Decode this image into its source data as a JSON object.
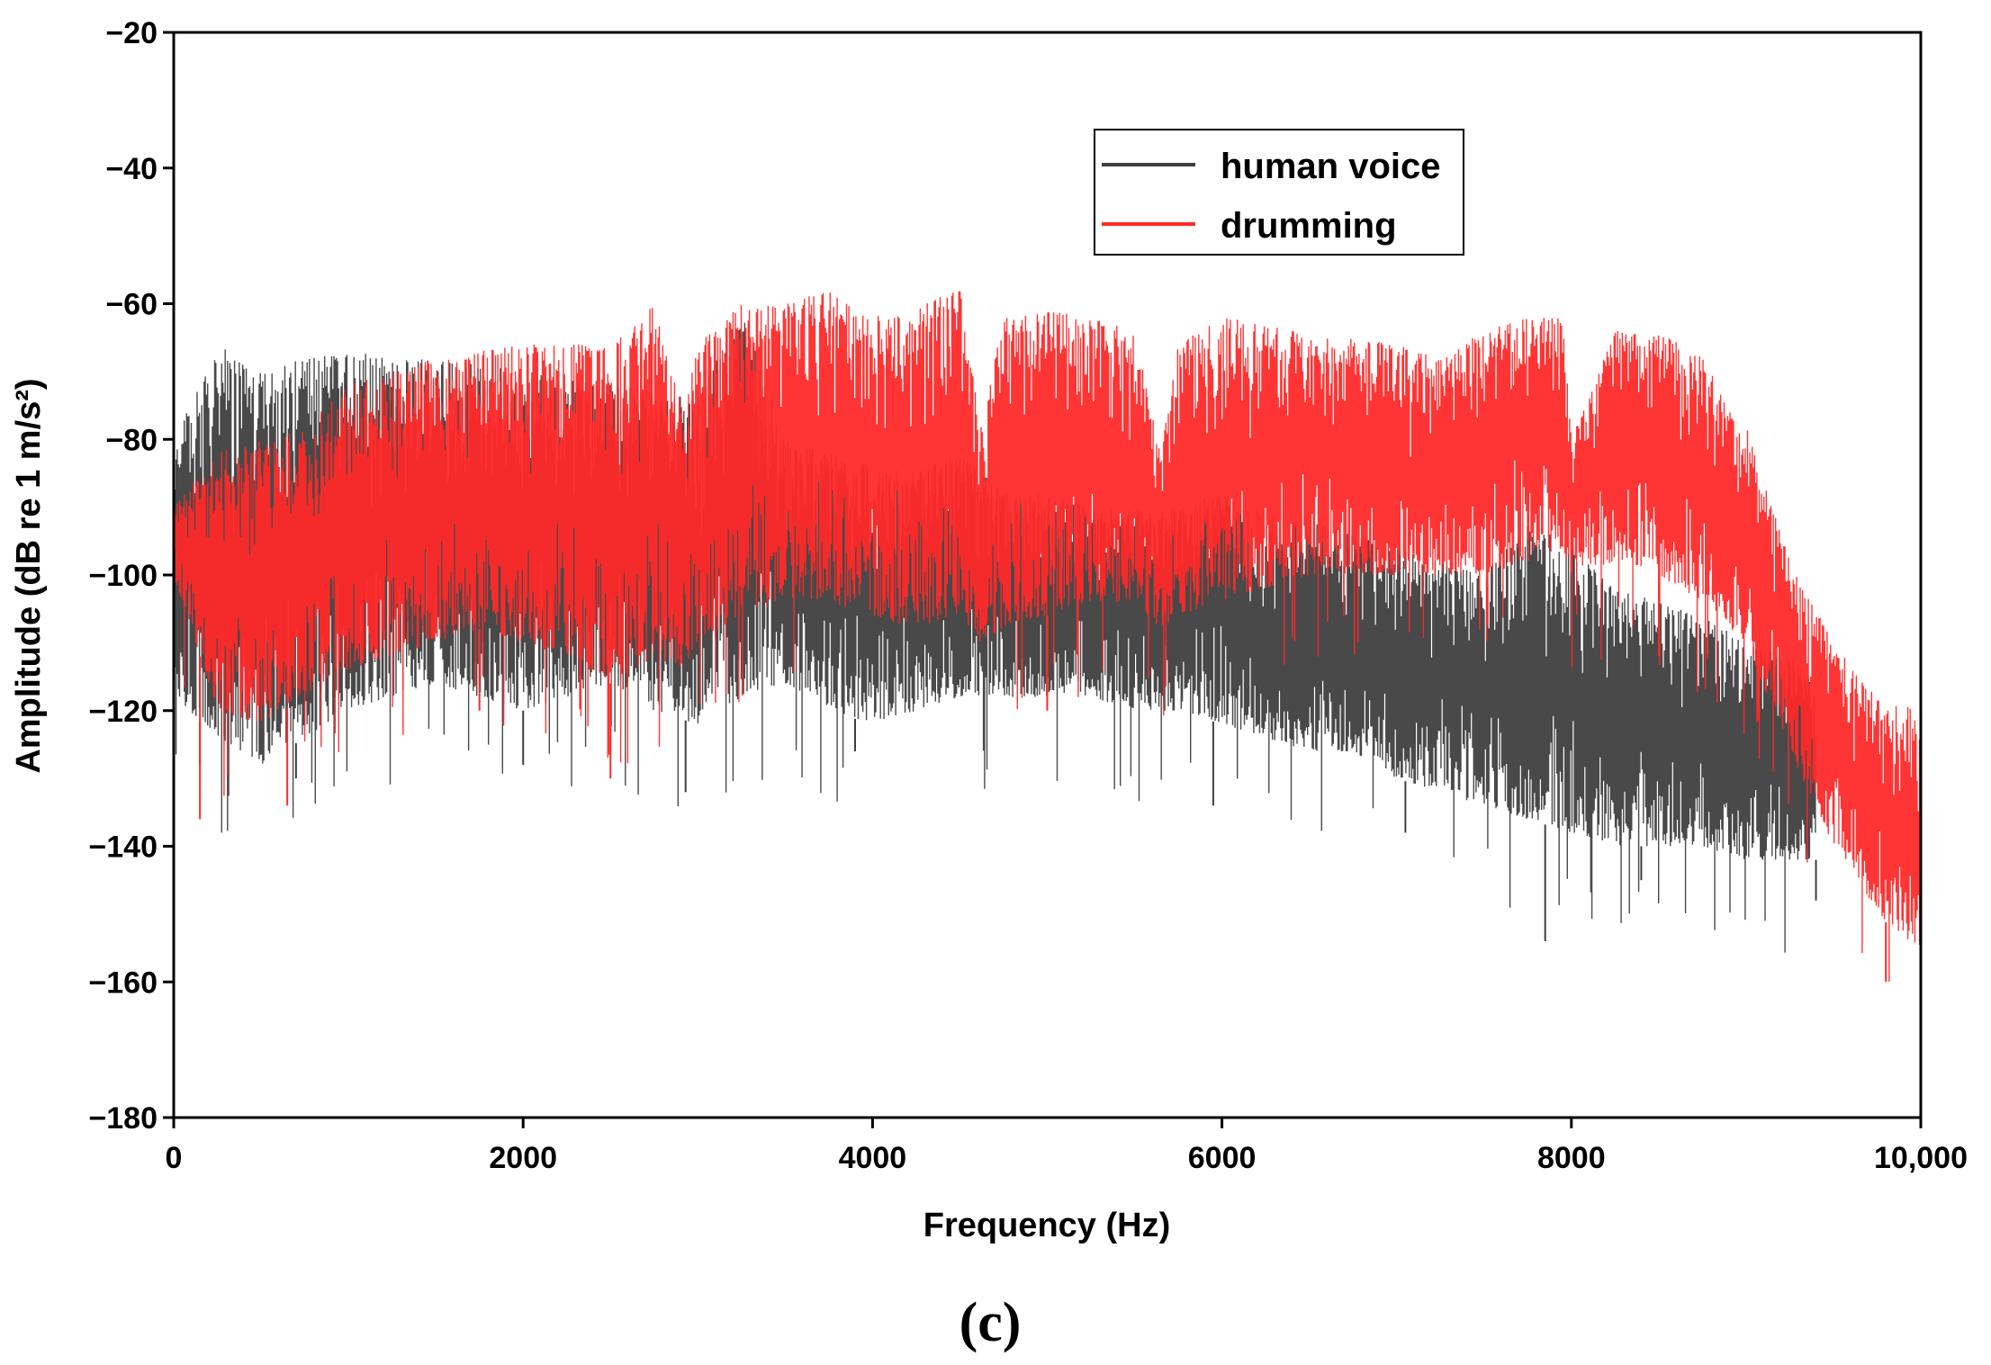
{
  "chart_data": {
    "type": "line",
    "title": "",
    "xlabel": "Frequency (Hz)",
    "ylabel": "Amplitude (dB re 1 m/s²)",
    "xlim": [
      0,
      10000
    ],
    "ylim": [
      -180,
      -20
    ],
    "x_ticks": [
      0,
      2000,
      4000,
      6000,
      8000,
      10000
    ],
    "x_tick_labels": [
      "0",
      "2000",
      "4000",
      "6000",
      "8000",
      "10,000"
    ],
    "y_ticks": [
      -20,
      -40,
      -60,
      -80,
      -100,
      -120,
      -140,
      -160,
      -180
    ],
    "y_tick_labels": [
      "−20",
      "−40",
      "−60",
      "−80",
      "−100",
      "−120",
      "−140",
      "−160",
      "−180"
    ],
    "grid": false,
    "legend_position": "top-right",
    "panel_label": "(c)",
    "series": [
      {
        "name": "human voice",
        "color": "#3f3f3f",
        "style": "dense spectrum band",
        "x": [
          0,
          250,
          500,
          750,
          1000,
          1250,
          1500,
          1750,
          2000,
          2250,
          2500,
          2750,
          3000,
          3250,
          3500,
          3750,
          4000,
          4250,
          4500,
          4750,
          5000,
          5250,
          5500,
          5750,
          6000,
          6250,
          6500,
          6750,
          7000,
          7250,
          7500,
          7750,
          8000,
          8250,
          8500,
          8750,
          9000,
          9250,
          9400
        ],
        "upper": [
          -80,
          -66,
          -70,
          -68,
          -67,
          -68,
          -68,
          -69,
          -70,
          -71,
          -72,
          -73,
          -74,
          -60,
          -80,
          -82,
          -84,
          -85,
          -82,
          -88,
          -88,
          -90,
          -90,
          -90,
          -88,
          -91,
          -92,
          -94,
          -96,
          -98,
          -100,
          -92,
          -96,
          -102,
          -104,
          -106,
          -110,
          -112,
          -116
        ],
        "lower": [
          -118,
          -124,
          -128,
          -124,
          -120,
          -118,
          -116,
          -118,
          -120,
          -118,
          -116,
          -120,
          -122,
          -118,
          -116,
          -120,
          -122,
          -120,
          -118,
          -118,
          -118,
          -118,
          -120,
          -120,
          -122,
          -124,
          -126,
          -126,
          -130,
          -132,
          -134,
          -136,
          -138,
          -140,
          -140,
          -140,
          -142,
          -142,
          -142
        ],
        "min_spikes": [
          [
            150,
            -128
          ],
          [
            700,
            -130
          ],
          [
            2000,
            -128
          ],
          [
            2930,
            -132
          ],
          [
            3900,
            -126
          ],
          [
            5950,
            -134
          ],
          [
            7050,
            -138
          ],
          [
            7850,
            -154
          ],
          [
            8400,
            -145
          ],
          [
            9400,
            -148
          ]
        ]
      },
      {
        "name": "drumming",
        "color": "#ff2a2a",
        "style": "dense spectrum band",
        "x": [
          0,
          250,
          500,
          750,
          1000,
          1250,
          1500,
          1750,
          2000,
          2250,
          2500,
          2750,
          2920,
          3000,
          3250,
          3500,
          3750,
          4000,
          4250,
          4500,
          4620,
          4750,
          5000,
          5250,
          5500,
          5650,
          5750,
          6000,
          6250,
          6500,
          6750,
          7000,
          7250,
          7500,
          7750,
          7950,
          8000,
          8250,
          8500,
          8750,
          9000,
          9250,
          9500,
          9750,
          10000
        ],
        "upper": [
          -90,
          -82,
          -80,
          -78,
          -72,
          -70,
          -68,
          -67,
          -66,
          -66,
          -66,
          -60,
          -76,
          -66,
          -60,
          -60,
          -58,
          -62,
          -60,
          -58,
          -78,
          -62,
          -61,
          -62,
          -64,
          -82,
          -66,
          -62,
          -63,
          -64,
          -65,
          -66,
          -68,
          -64,
          -62,
          -62,
          -80,
          -64,
          -64,
          -68,
          -78,
          -98,
          -110,
          -118,
          -120
        ],
        "lower": [
          -100,
          -120,
          -122,
          -118,
          -114,
          -112,
          -110,
          -108,
          -110,
          -112,
          -116,
          -112,
          -114,
          -110,
          -106,
          -104,
          -104,
          -106,
          -108,
          -106,
          -110,
          -108,
          -106,
          -104,
          -104,
          -108,
          -106,
          -104,
          -102,
          -100,
          -100,
          -100,
          -100,
          -100,
          -98,
          -96,
          -100,
          -98,
          -100,
          -104,
          -110,
          -126,
          -140,
          -150,
          -156
        ],
        "min_spikes": [
          [
            150,
            -136
          ],
          [
            650,
            -134
          ],
          [
            1750,
            -120
          ],
          [
            2500,
            -130
          ],
          [
            5000,
            -120
          ],
          [
            9800,
            -160
          ]
        ]
      }
    ]
  },
  "legend": {
    "items": [
      "human voice",
      "drumming"
    ]
  }
}
